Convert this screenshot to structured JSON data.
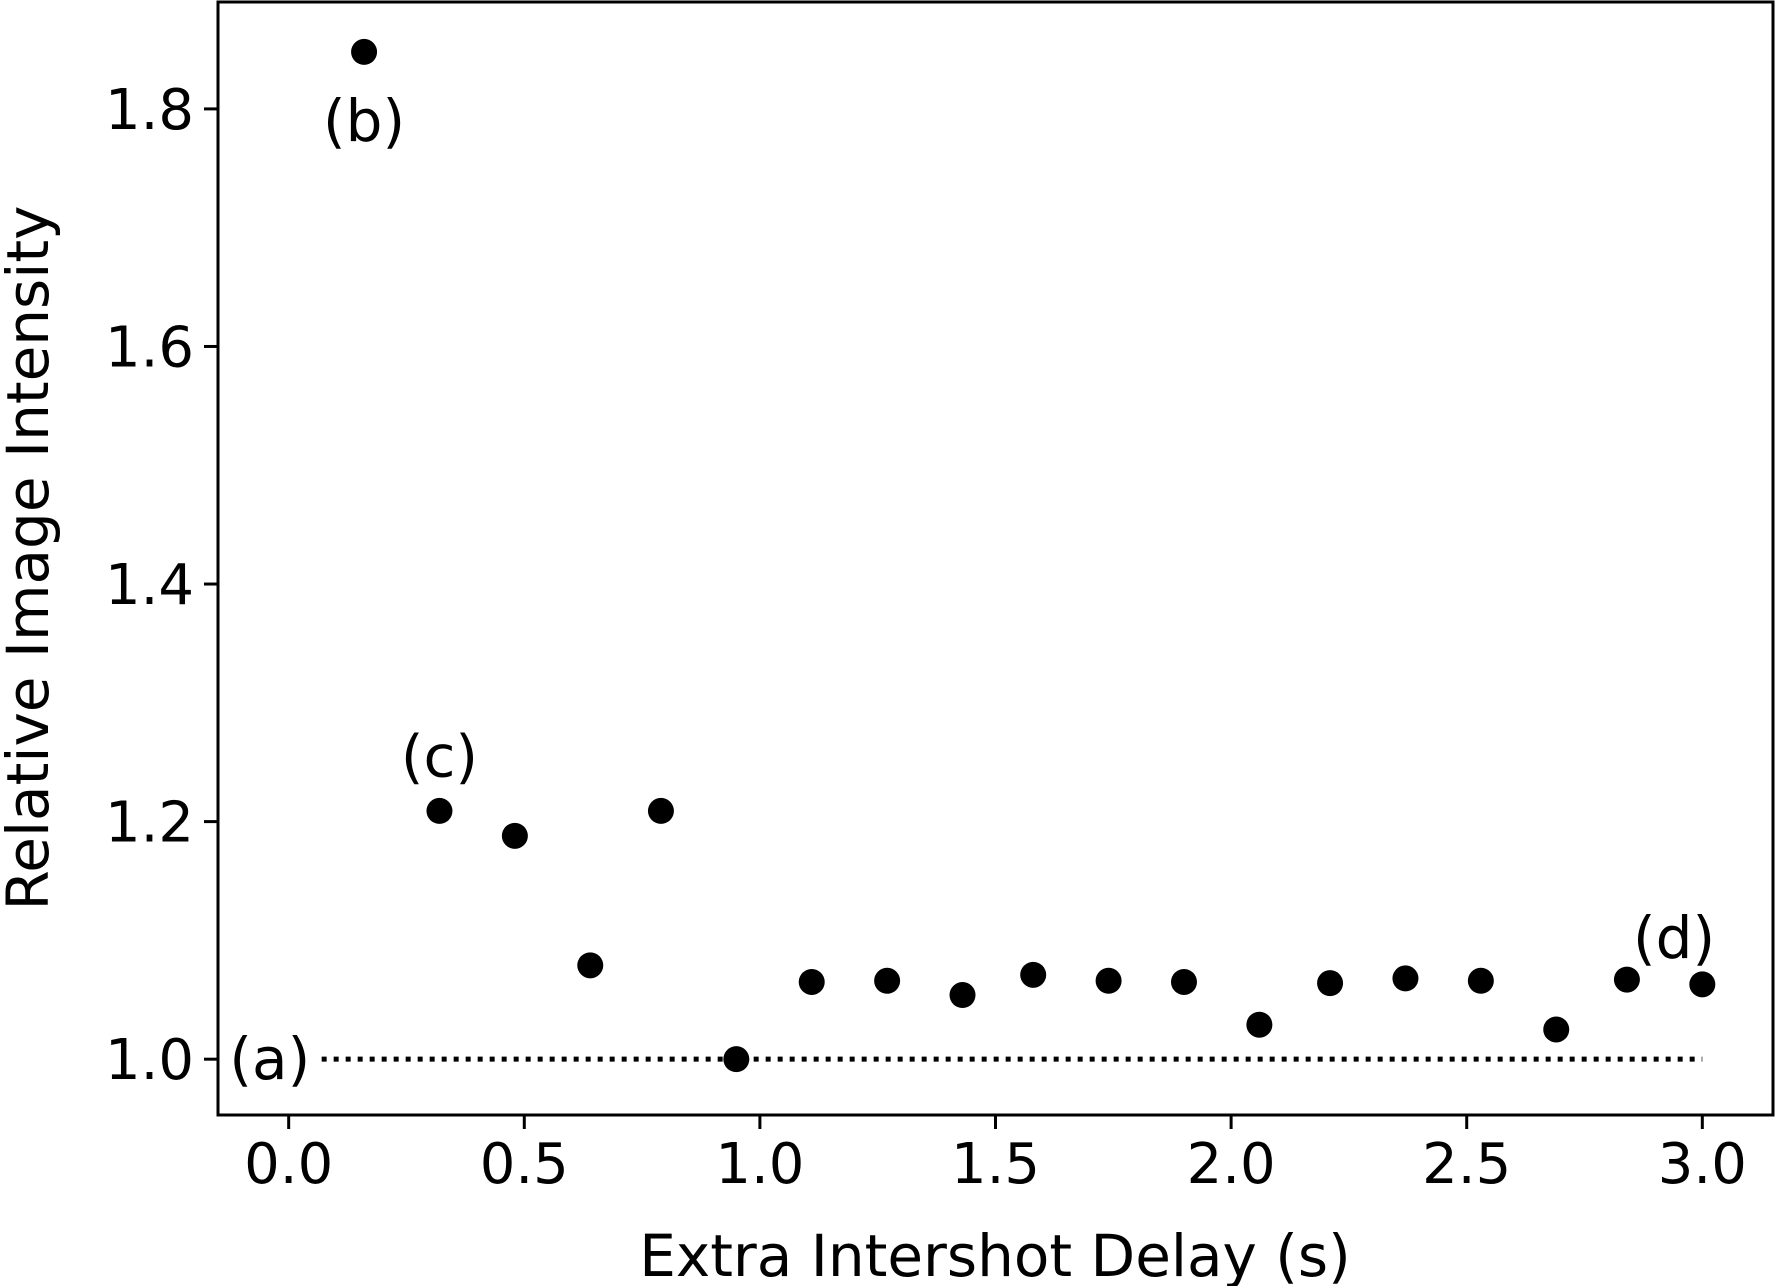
{
  "chart_data": {
    "type": "scatter",
    "xlabel": "Extra Intershot Delay (s)",
    "ylabel": "Relative Image Intensity",
    "xlim": [
      -0.15,
      3.15
    ],
    "ylim": [
      0.953,
      1.89
    ],
    "x_ticks": [
      0.0,
      0.5,
      1.0,
      1.5,
      2.0,
      2.5,
      3.0
    ],
    "x_tick_labels": [
      "0.0",
      "0.5",
      "1.0",
      "1.5",
      "2.0",
      "2.5",
      "3.0"
    ],
    "y_ticks": [
      1.0,
      1.2,
      1.4,
      1.6,
      1.8
    ],
    "y_tick_labels": [
      "1.0",
      "1.2",
      "1.4",
      "1.6",
      "1.8"
    ],
    "grid": false,
    "marker_color": "#000000",
    "points": [
      {
        "x": 0.16,
        "y": 1.848
      },
      {
        "x": 0.32,
        "y": 1.209
      },
      {
        "x": 0.48,
        "y": 1.188
      },
      {
        "x": 0.64,
        "y": 1.079
      },
      {
        "x": 0.79,
        "y": 1.209
      },
      {
        "x": 0.95,
        "y": 1.0
      },
      {
        "x": 1.11,
        "y": 1.065
      },
      {
        "x": 1.27,
        "y": 1.066
      },
      {
        "x": 1.43,
        "y": 1.054
      },
      {
        "x": 1.58,
        "y": 1.071
      },
      {
        "x": 1.74,
        "y": 1.066
      },
      {
        "x": 1.9,
        "y": 1.065
      },
      {
        "x": 2.06,
        "y": 1.029
      },
      {
        "x": 2.21,
        "y": 1.064
      },
      {
        "x": 2.37,
        "y": 1.068
      },
      {
        "x": 2.53,
        "y": 1.066
      },
      {
        "x": 2.69,
        "y": 1.025
      },
      {
        "x": 2.84,
        "y": 1.067
      },
      {
        "x": 3.0,
        "y": 1.063
      }
    ],
    "reference_line": {
      "style": "dotted",
      "y": 1.0,
      "x_start": 0.07,
      "x_end": 3.0
    },
    "annotations": [
      {
        "text": "(a)",
        "x": -0.04,
        "y": 1.0
      },
      {
        "text": "(b)",
        "x": 0.16,
        "y": 1.79
      },
      {
        "text": "(c)",
        "x": 0.32,
        "y": 1.255
      },
      {
        "text": "(d)",
        "x": 2.94,
        "y": 1.102
      }
    ]
  }
}
